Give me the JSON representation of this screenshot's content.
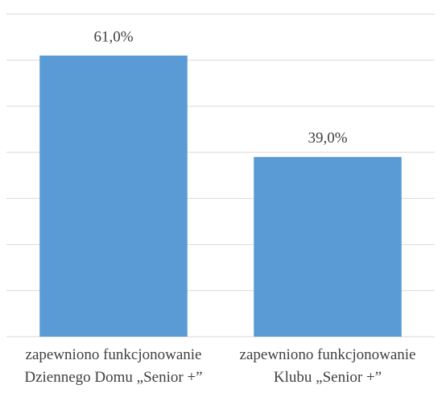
{
  "chart_data": {
    "type": "bar",
    "categories": [
      "zapewniono funkcjonowanie Dziennego Domu „Senior +”",
      "zapewniono funkcjonowanie Klubu „Senior +”"
    ],
    "values": [
      61.0,
      39.0
    ],
    "value_labels": [
      "61,0%",
      "39,0%"
    ],
    "color": "#5b9bd5",
    "ylim": [
      0,
      70
    ],
    "yticks": [
      0,
      10,
      20,
      30,
      40,
      50,
      60,
      70
    ],
    "grid": true
  }
}
